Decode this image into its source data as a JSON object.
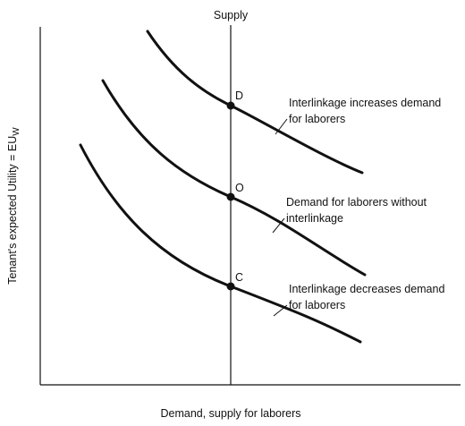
{
  "supply_label": "Supply",
  "x_axis_label": "Demand, supply for laborers",
  "y_axis_label": {
    "text": "Tenant's expected Utility = EU",
    "subscript": "W"
  },
  "points": [
    {
      "label": "D"
    },
    {
      "label": "O"
    },
    {
      "label": "C"
    }
  ],
  "annotations": [
    {
      "lines": [
        "Interlinkage increases demand",
        "for laborers"
      ]
    },
    {
      "lines": [
        "Demand for laborers without",
        "interlinkage"
      ]
    },
    {
      "lines": [
        "Interlinkage decreases demand",
        "for laborers"
      ]
    }
  ]
}
